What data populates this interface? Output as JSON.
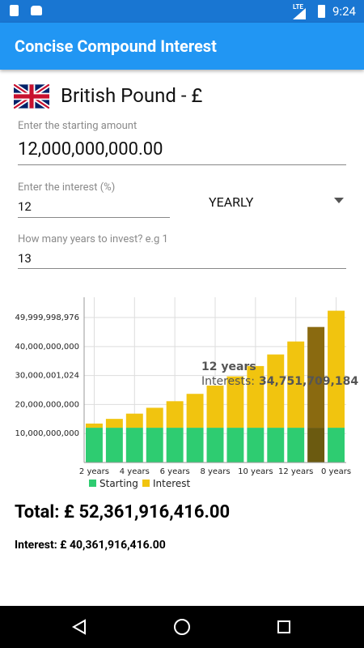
{
  "status_bar": {
    "network": "LTE",
    "time": "9:24"
  },
  "app_bar": {
    "title": "Concise Compound Interest"
  },
  "currency": {
    "label": "British Pound - £"
  },
  "form": {
    "amount_label": "Enter the starting amount",
    "amount_value": "12,000,000,000.00",
    "interest_label": "Enter the interest (%)",
    "interest_value": "12",
    "period": "YEARLY",
    "years_label": "How many years to invest? e.g 1",
    "years_value": "13"
  },
  "chart_data": {
    "type": "bar",
    "stacked": true,
    "categories": [
      "2 years",
      null,
      "4 years",
      null,
      "6 years",
      null,
      "8 years",
      null,
      "10 years",
      null,
      "12 years",
      null,
      "0 years"
    ],
    "series": [
      {
        "name": "Starting",
        "color": "#2ecc71",
        "highlight_color": "#6b5a10",
        "values": [
          12000000000,
          12000000000,
          12000000000,
          12000000000,
          12000000000,
          12000000000,
          12000000000,
          12000000000,
          12000000000,
          12000000000,
          12000000000,
          12000000000,
          12000000000
        ]
      },
      {
        "name": "Interest",
        "color": "#f1c40f",
        "highlight_color": "#8a6a10",
        "values": [
          1440000000,
          3052800000,
          4859136000,
          6882232320,
          9148100198,
          11686272222,
          14528624889,
          17711059876,
          21276387061,
          25269553508,
          29741899929,
          34751709184,
          40361916416
        ]
      }
    ],
    "ylim": [
      0,
      57000000000
    ],
    "yticks": [
      {
        "value": 10000000000,
        "label": "10,000,000,000"
      },
      {
        "value": 20000000000,
        "label": "20,000,000,000"
      },
      {
        "value": 30000001024,
        "label": "30,000,001,024"
      },
      {
        "value": 40000000000,
        "label": "40,000,000,000"
      },
      {
        "value": 49999998976,
        "label": "49,999,998,976"
      }
    ],
    "grid": true,
    "highlight": 11,
    "tooltip": {
      "title": "12 years",
      "label": "Interests:",
      "value": "34,751,709,184"
    }
  },
  "totals": {
    "total": "Total: £ 52,361,916,416.00",
    "interest": "Interest: £ 40,361,916,416.00"
  }
}
